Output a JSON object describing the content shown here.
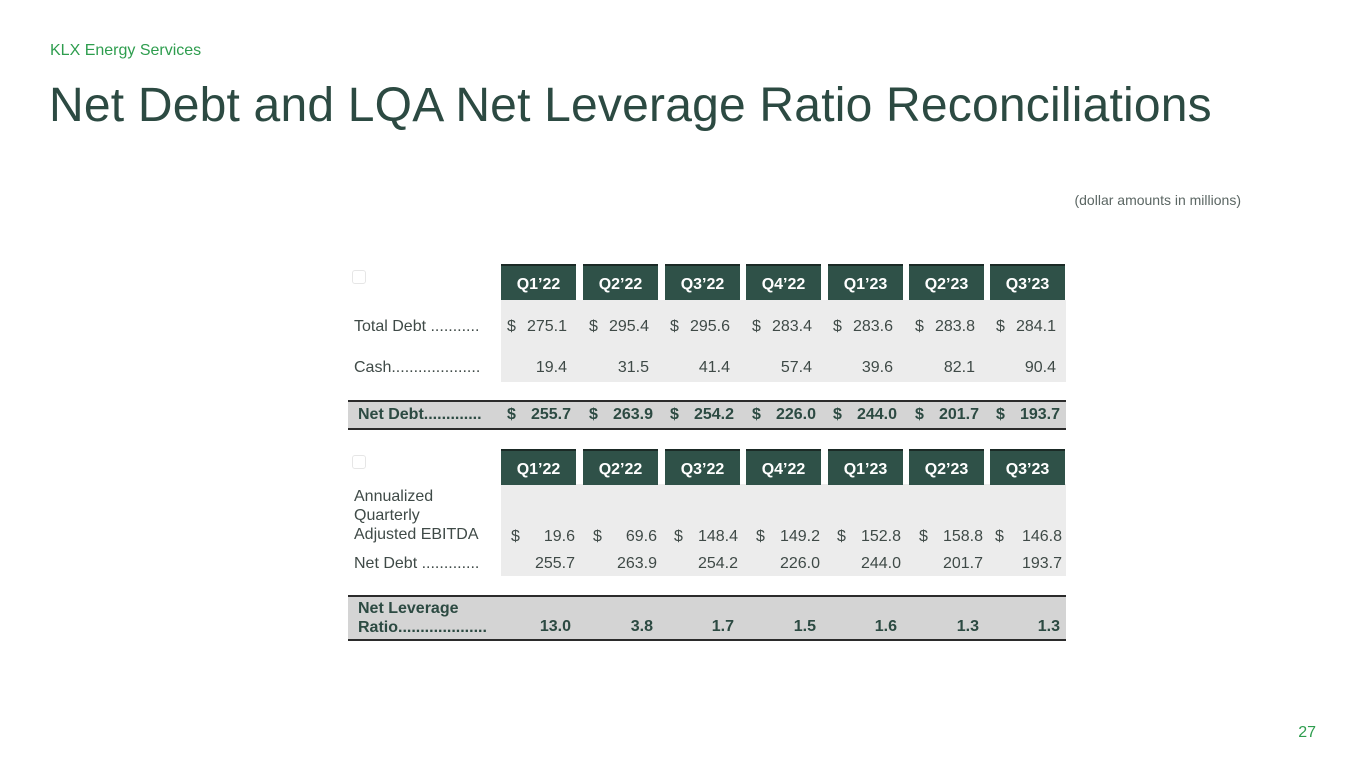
{
  "header": {
    "company": "KLX Energy Services",
    "title": "Net Debt and LQA Net Leverage Ratio Reconciliations",
    "units": "(dollar amounts in millions)"
  },
  "table1": {
    "columns": [
      "Q1’22",
      "Q2’22",
      "Q3’22",
      "Q4’22",
      "Q1’23",
      "Q2’23",
      "Q3’23"
    ],
    "rows": [
      {
        "label": "Total Debt ...........",
        "dollar": "$",
        "values": [
          "275.1",
          "295.4",
          "295.6",
          "283.4",
          "283.6",
          "283.8",
          "284.1"
        ]
      },
      {
        "label": "Cash....................",
        "dollar": "",
        "values": [
          "19.4",
          "31.5",
          "41.4",
          "57.4",
          "39.6",
          "82.1",
          "90.4"
        ]
      }
    ],
    "total": {
      "label": "Net Debt.............",
      "dollar": "$",
      "values": [
        "255.7",
        "263.9",
        "254.2",
        "226.0",
        "244.0",
        "201.7",
        "193.7"
      ]
    }
  },
  "table2": {
    "columns": [
      "Q1’22",
      "Q2’22",
      "Q3’22",
      "Q4’22",
      "Q1’23",
      "Q2’23",
      "Q3’23"
    ],
    "rows": [
      {
        "label_lines": [
          "Annualized",
          "Quarterly",
          "Adjusted EBITDA"
        ],
        "dollar": "$",
        "values": [
          "19.6",
          "69.6",
          "148.4",
          "149.2",
          "152.8",
          "158.8",
          "146.8"
        ]
      },
      {
        "label": "Net Debt .............",
        "dollar": "",
        "values": [
          "255.7",
          "263.9",
          "254.2",
          "226.0",
          "244.0",
          "201.7",
          "193.7"
        ]
      }
    ],
    "total": {
      "label_lines": [
        "Net Leverage",
        "Ratio...................."
      ],
      "values": [
        "13.0",
        "3.8",
        "1.7",
        "1.5",
        "1.6",
        "1.3",
        "1.3"
      ]
    }
  },
  "footer": {
    "page_number": "27"
  },
  "colors": {
    "accent_green": "#2e9d4e",
    "header_fill": "#2f5148",
    "title": "#2c4a42"
  }
}
